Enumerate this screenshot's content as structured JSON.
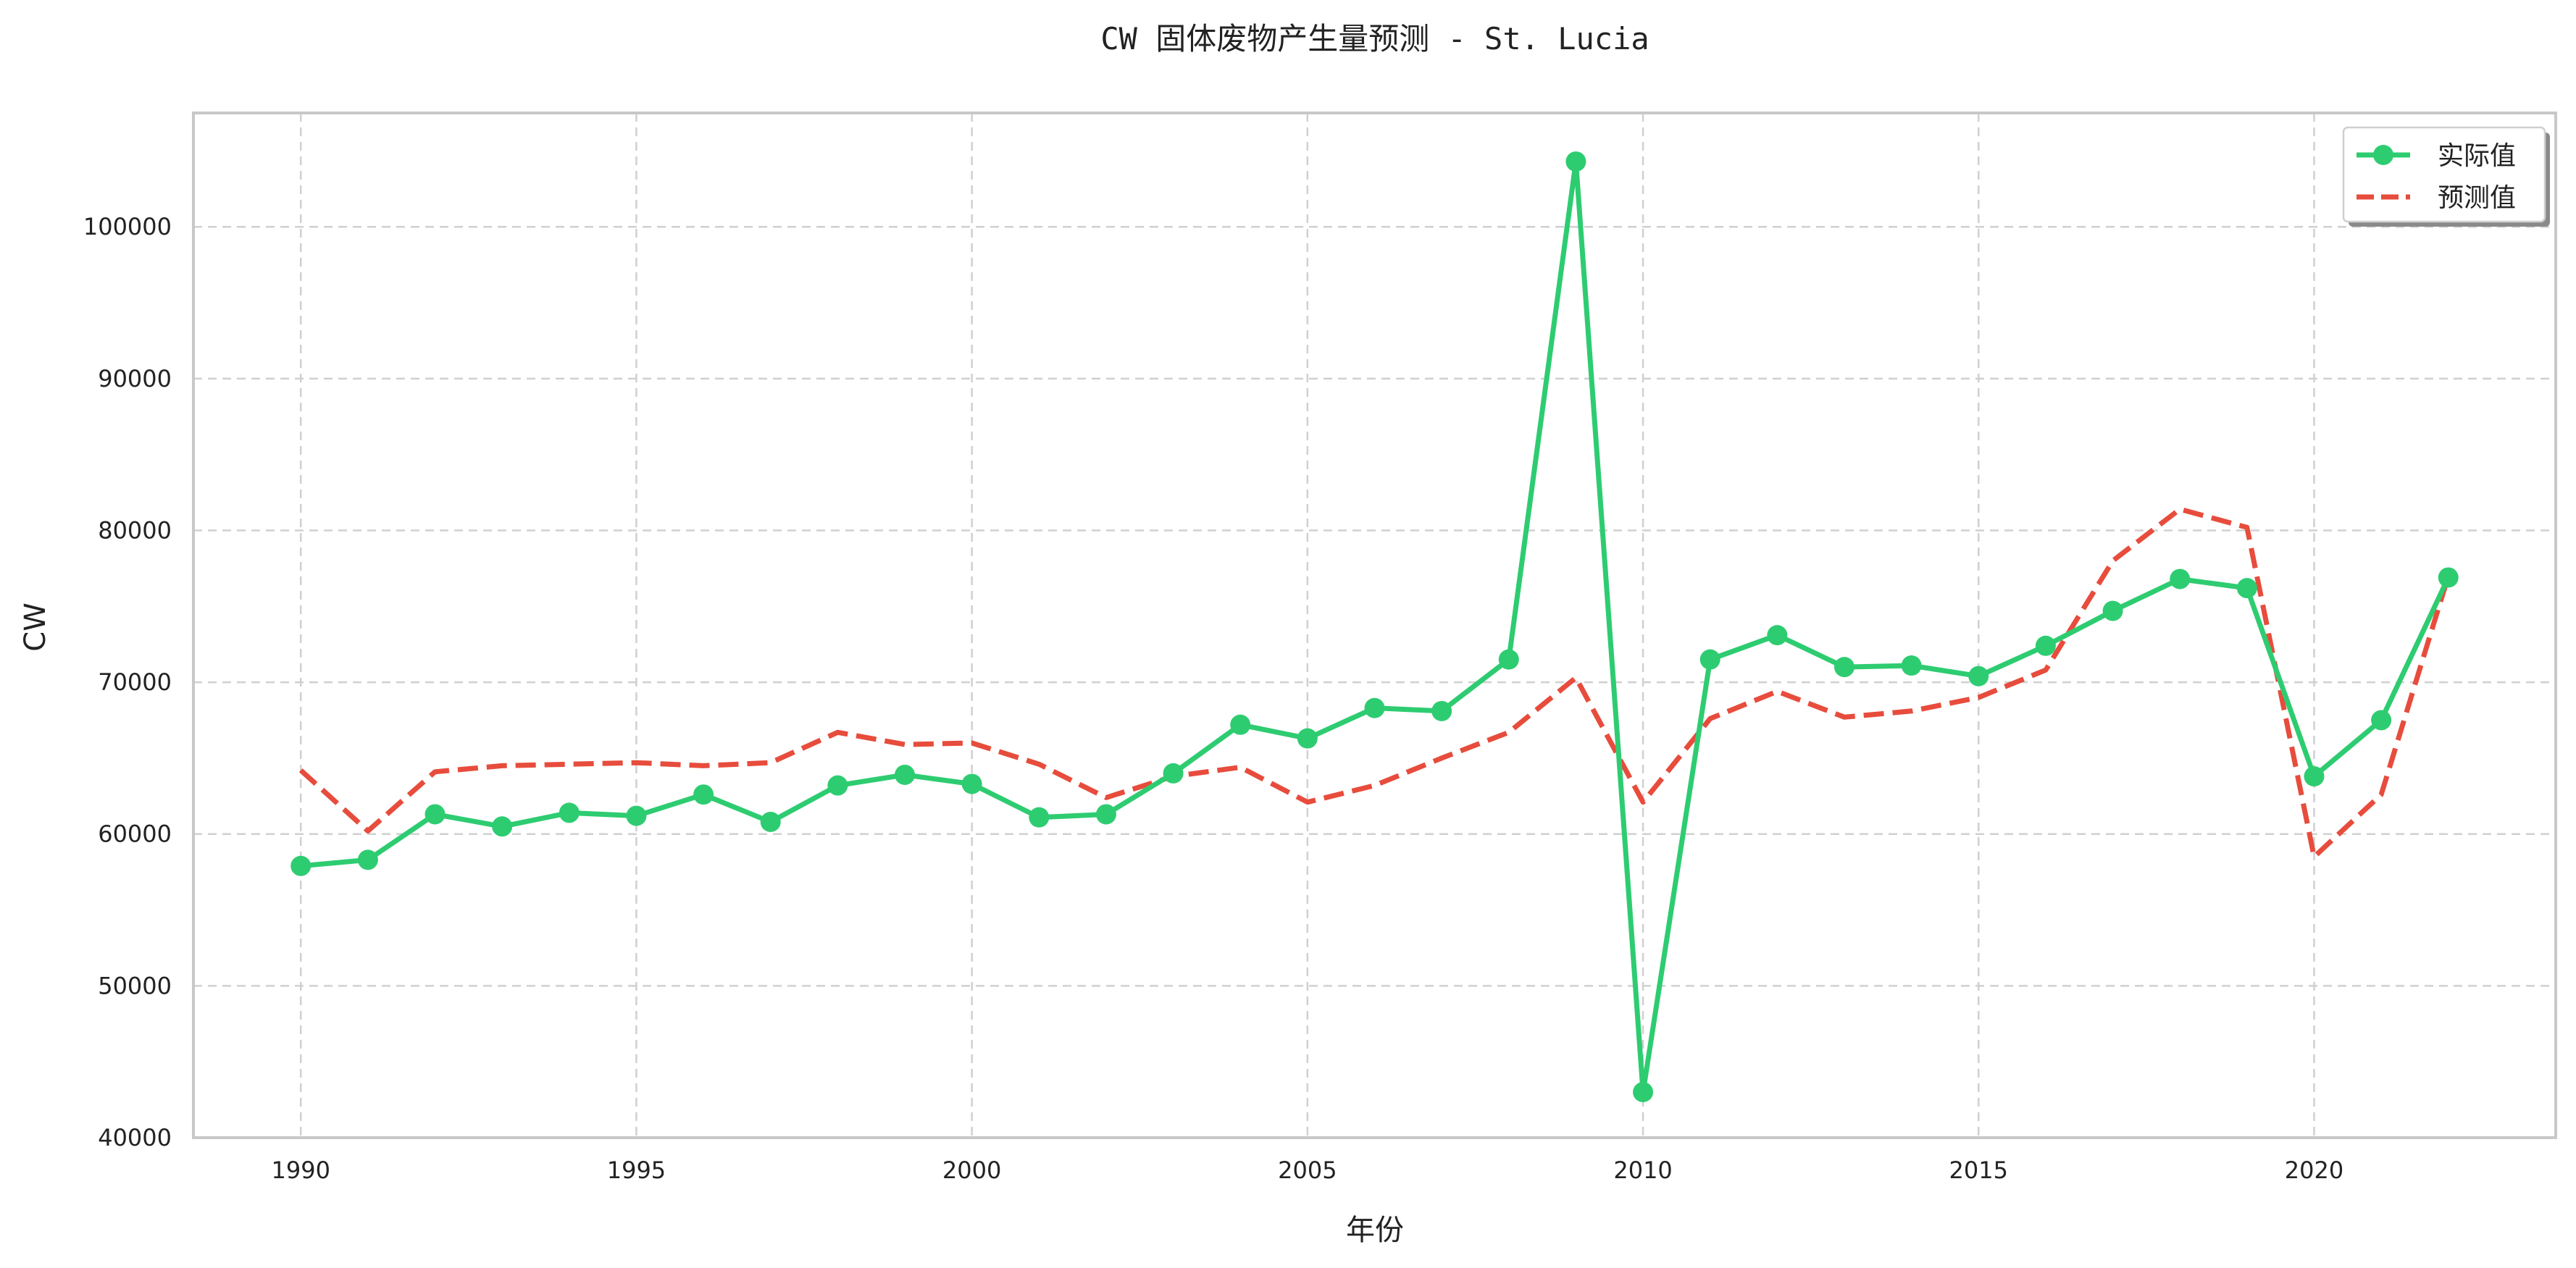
{
  "chart_data": {
    "type": "line",
    "title": "CW 固体废物产生量预测 - St. Lucia",
    "xlabel": "年份",
    "ylabel": "CW",
    "xlim": [
      1988.4,
      2023.6
    ],
    "ylim": [
      40000,
      107500
    ],
    "xticks": [
      1990,
      1995,
      2000,
      2005,
      2010,
      2015,
      2020
    ],
    "yticks": [
      40000,
      50000,
      60000,
      70000,
      80000,
      90000,
      100000
    ],
    "grid": true,
    "legend_position": "top-right",
    "x": [
      1990,
      1991,
      1992,
      1993,
      1994,
      1995,
      1996,
      1997,
      1998,
      1999,
      2000,
      2001,
      2002,
      2003,
      2004,
      2005,
      2006,
      2007,
      2008,
      2009,
      2010,
      2011,
      2012,
      2013,
      2014,
      2015,
      2016,
      2017,
      2018,
      2019,
      2020,
      2021,
      2022
    ],
    "series": [
      {
        "name": "实际值",
        "color": "#2ecc71",
        "style": "solid-markers",
        "values": [
          57900,
          58300,
          61300,
          60500,
          61400,
          61200,
          62600,
          60800,
          63200,
          63900,
          63300,
          61100,
          61300,
          64000,
          67200,
          66300,
          68300,
          68100,
          71500,
          104300,
          43000,
          71500,
          73100,
          71000,
          71100,
          70400,
          72400,
          74700,
          76800,
          76200,
          63800,
          67500,
          76900
        ]
      },
      {
        "name": "预测值",
        "color": "#e74c3c",
        "style": "dashed",
        "values": [
          64200,
          60200,
          64100,
          64500,
          64600,
          64700,
          64500,
          64700,
          66700,
          65900,
          66000,
          64600,
          62400,
          63800,
          64400,
          62100,
          63200,
          65000,
          66700,
          70300,
          62100,
          67600,
          69400,
          67700,
          68100,
          69000,
          70800,
          78000,
          81400,
          80200,
          58500,
          62600,
          77000
        ]
      }
    ]
  }
}
